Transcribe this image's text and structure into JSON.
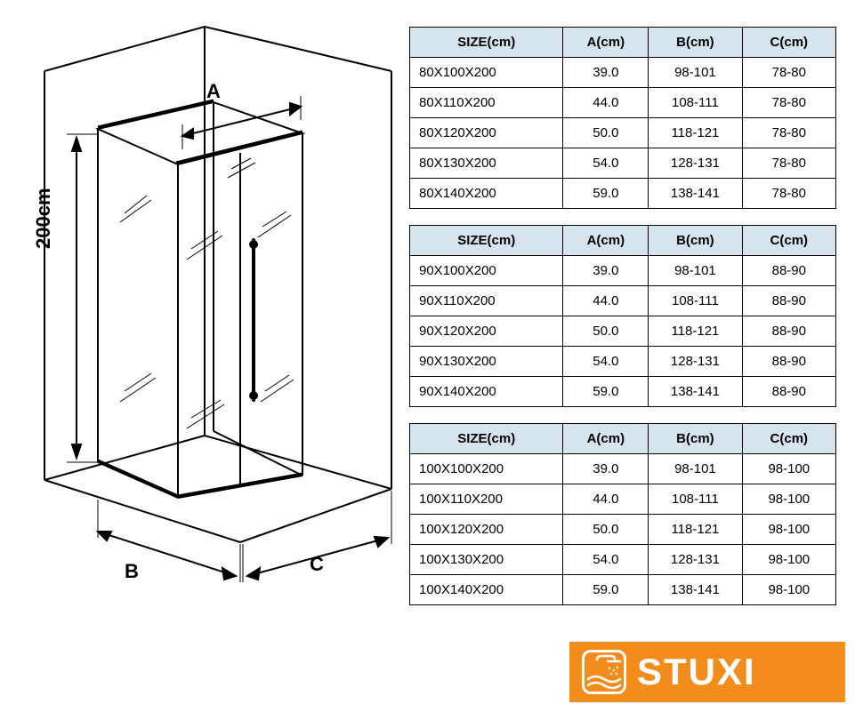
{
  "diagram": {
    "height_label": "200cm",
    "label_A": "A",
    "label_B": "B",
    "label_C": "C",
    "label_fontsize": 22,
    "label_bold": true,
    "stroke_color": "#000000",
    "stroke_width": 2,
    "glass_stroke_width": 1,
    "fill": "#ffffff"
  },
  "tables": [
    {
      "headers": [
        "SIZE(cm)",
        "A(cm)",
        "B(cm)",
        "C(cm)"
      ],
      "header_bg": "#d6e4ee",
      "border_color": "#000000",
      "font_size": 15,
      "rows": [
        [
          "80X100X200",
          "39.0",
          "98-101",
          "78-80"
        ],
        [
          "80X110X200",
          "44.0",
          "108-111",
          "78-80"
        ],
        [
          "80X120X200",
          "50.0",
          "118-121",
          "78-80"
        ],
        [
          "80X130X200",
          "54.0",
          "128-131",
          "78-80"
        ],
        [
          "80X140X200",
          "59.0",
          "138-141",
          "78-80"
        ]
      ]
    },
    {
      "headers": [
        "SIZE(cm)",
        "A(cm)",
        "B(cm)",
        "C(cm)"
      ],
      "header_bg": "#d6e4ee",
      "border_color": "#000000",
      "font_size": 15,
      "rows": [
        [
          "90X100X200",
          "39.0",
          "98-101",
          "88-90"
        ],
        [
          "90X110X200",
          "44.0",
          "108-111",
          "88-90"
        ],
        [
          "90X120X200",
          "50.0",
          "118-121",
          "88-90"
        ],
        [
          "90X130X200",
          "54.0",
          "128-131",
          "88-90"
        ],
        [
          "90X140X200",
          "59.0",
          "138-141",
          "88-90"
        ]
      ]
    },
    {
      "headers": [
        "SIZE(cm)",
        "A(cm)",
        "B(cm)",
        "C(cm)"
      ],
      "header_bg": "#d6e4ee",
      "border_color": "#000000",
      "font_size": 15,
      "rows": [
        [
          "100X100X200",
          "39.0",
          "98-101",
          "98-100"
        ],
        [
          "100X110X200",
          "44.0",
          "108-111",
          "98-100"
        ],
        [
          "100X120X200",
          "50.0",
          "118-121",
          "98-100"
        ],
        [
          "100X130X200",
          "54.0",
          "128-131",
          "98-100"
        ],
        [
          "100X140X200",
          "59.0",
          "138-141",
          "98-100"
        ]
      ]
    }
  ],
  "logo": {
    "text": "STUXI",
    "bg_color": "#f28c1a",
    "text_color": "#ffffff",
    "icon_border_color": "#ffffff",
    "font_size": 42
  }
}
